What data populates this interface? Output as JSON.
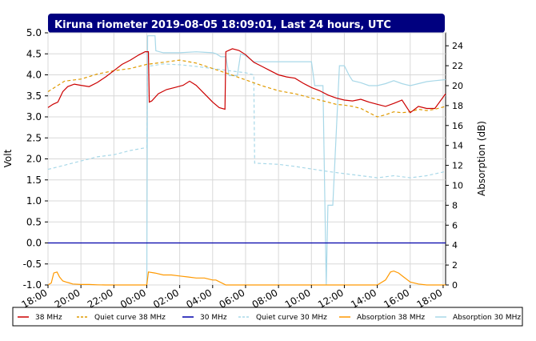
{
  "chart_data": {
    "type": "line",
    "title": "Kiruna riometer 2019-08-05 18:09:01, Last 24 hours, UTC",
    "ylabel": "Volt",
    "y2label": "Absorption (dB)",
    "xlabel": "",
    "x_ticks": [
      "18:00",
      "20:00",
      "22:00",
      "00:00",
      "02:00",
      "04:00",
      "06:00",
      "08:00",
      "10:00",
      "12:00",
      "14:00",
      "16:00",
      "18:00"
    ],
    "x_range_hours": [
      0,
      24.15
    ],
    "ylim": [
      -1.0,
      5.0
    ],
    "y_ticks": [
      "5.0",
      "4.5",
      "4.0",
      "3.5",
      "3.0",
      "2.5",
      "2.0",
      "1.5",
      "1.0",
      "0.5",
      "0.0",
      "-0.5",
      "-1.0"
    ],
    "y2lim": [
      0,
      25.3
    ],
    "y2_ticks": [
      "24",
      "22",
      "20",
      "18",
      "16",
      "14",
      "12",
      "10",
      "8",
      "6",
      "4",
      "2",
      "0"
    ],
    "grid": true,
    "legend_position": "bottom",
    "colors": {
      "title_bg": "#00007f",
      "s38": "#cc0000",
      "q38": "#e09a00",
      "s30": "#0000aa",
      "q30": "#a8d8e8",
      "a38": "#ff9900",
      "a30": "#a8d8e8"
    },
    "series": [
      {
        "name": "38 MHz",
        "key": "s38",
        "style": "solid",
        "axis": "volt",
        "x": [
          0,
          0.3,
          0.6,
          0.9,
          1.2,
          1.6,
          2,
          2.5,
          3,
          3.5,
          4,
          4.5,
          5,
          5.5,
          5.9,
          6.1,
          6.15,
          6.3,
          6.7,
          7.2,
          7.7,
          8.2,
          8.6,
          9,
          9.5,
          10,
          10.4,
          10.75,
          10.8,
          11.2,
          11.6,
          12,
          12.5,
          13,
          13.5,
          14,
          14.5,
          15,
          15.5,
          16,
          16.5,
          17,
          17.5,
          18,
          18.5,
          19,
          19.5,
          20,
          20.5,
          21,
          21.5,
          22,
          22.5,
          23,
          23.5,
          24.15
        ],
        "y": [
          3.22,
          3.3,
          3.35,
          3.6,
          3.72,
          3.78,
          3.75,
          3.72,
          3.82,
          3.95,
          4.1,
          4.25,
          4.35,
          4.47,
          4.55,
          4.55,
          3.35,
          3.38,
          3.55,
          3.65,
          3.7,
          3.75,
          3.85,
          3.75,
          3.55,
          3.35,
          3.22,
          3.18,
          4.55,
          4.62,
          4.58,
          4.48,
          4.3,
          4.2,
          4.1,
          4.0,
          3.95,
          3.92,
          3.8,
          3.7,
          3.62,
          3.52,
          3.45,
          3.4,
          3.38,
          3.42,
          3.35,
          3.3,
          3.25,
          3.32,
          3.4,
          3.1,
          3.25,
          3.2,
          3.2,
          3.55
        ]
      },
      {
        "name": "Quiet curve 38 MHz",
        "key": "q38",
        "style": "dashed",
        "axis": "volt",
        "x": [
          0,
          1,
          2,
          3,
          4,
          5,
          6,
          7,
          8,
          9,
          10,
          11,
          12,
          13,
          14,
          15,
          16,
          16.5,
          17,
          17.5,
          18,
          18.5,
          19,
          19.5,
          20,
          20.5,
          21,
          21.5,
          22,
          22.5,
          23,
          23.5,
          24.15
        ],
        "y": [
          3.6,
          3.85,
          3.9,
          4.02,
          4.1,
          4.15,
          4.25,
          4.3,
          4.35,
          4.28,
          4.15,
          4.02,
          3.88,
          3.74,
          3.62,
          3.55,
          3.45,
          3.4,
          3.35,
          3.3,
          3.28,
          3.25,
          3.2,
          3.1,
          3.0,
          3.05,
          3.12,
          3.1,
          3.12,
          3.18,
          3.15,
          3.18,
          3.25
        ]
      },
      {
        "name": "30 MHz",
        "key": "s30",
        "style": "solid",
        "axis": "volt",
        "x": [
          0,
          24.15
        ],
        "y": [
          0.0,
          0.0
        ]
      },
      {
        "name": "Quiet curve 30 MHz",
        "key": "q30",
        "style": "dashed",
        "axis": "volt",
        "x": [
          0,
          1,
          2,
          3,
          4,
          5,
          6,
          6.05,
          7,
          8,
          9,
          10,
          11,
          12,
          12.5,
          12.55,
          14,
          15,
          16,
          17,
          18,
          19,
          20,
          21,
          22,
          23,
          24.15
        ],
        "y": [
          1.75,
          1.85,
          1.95,
          2.05,
          2.1,
          2.2,
          2.27,
          4.2,
          4.26,
          4.24,
          4.2,
          4.15,
          4.1,
          4.05,
          4.0,
          1.9,
          1.87,
          1.82,
          1.76,
          1.7,
          1.65,
          1.6,
          1.55,
          1.6,
          1.55,
          1.6,
          1.7
        ]
      },
      {
        "name": "Absorption 38 MHz",
        "key": "a38",
        "style": "solid",
        "axis": "db",
        "x": [
          0,
          0.2,
          0.35,
          0.55,
          0.7,
          0.9,
          1.1,
          1.3,
          1.5,
          2,
          2.5,
          3,
          3.5,
          4,
          4.5,
          5,
          5.5,
          6,
          6.1,
          6.5,
          7,
          7.5,
          8,
          8.5,
          9,
          9.5,
          10,
          10.2,
          10.8,
          12,
          13,
          14,
          15,
          16,
          17,
          18,
          18.5,
          19,
          19.5,
          20,
          20.5,
          20.8,
          21,
          21.3,
          21.6,
          22,
          22.5,
          23,
          23.5,
          24.15
        ],
        "y": [
          0,
          0.2,
          1.2,
          1.3,
          0.8,
          0.4,
          0.3,
          0.2,
          0.1,
          0.05,
          0.05,
          0.02,
          0,
          0,
          0,
          0,
          0,
          0,
          1.3,
          1.2,
          1.0,
          1.0,
          0.9,
          0.8,
          0.7,
          0.7,
          0.5,
          0.5,
          0,
          0,
          0,
          0,
          0,
          0,
          0,
          0,
          0,
          0,
          0,
          0,
          0.5,
          1.3,
          1.4,
          1.2,
          0.8,
          0.3,
          0.1,
          0,
          0,
          0
        ]
      },
      {
        "name": "Absorption 30 MHz",
        "key": "a30",
        "style": "solid",
        "axis": "db",
        "x": [
          6,
          6.05,
          6.3,
          6.5,
          6.55,
          7,
          8,
          9,
          10,
          10.2,
          10.5,
          10.8,
          11,
          11.5,
          11.7,
          12,
          12.5,
          16,
          16.2,
          16.7,
          16.9,
          17,
          17.3,
          17.7,
          18,
          18.3,
          18.5,
          19,
          19.5,
          20,
          20.5,
          21,
          21.5,
          22,
          22.5,
          23,
          23.5,
          24.15
        ],
        "y": [
          0,
          25,
          25,
          25,
          23.5,
          23.3,
          23.3,
          23.4,
          23.3,
          23.2,
          22.9,
          22.9,
          21,
          21,
          23.2,
          23,
          22.4,
          22.4,
          20,
          20,
          0,
          8,
          8,
          22,
          22,
          21,
          20.5,
          20.3,
          20,
          20,
          20.2,
          20.5,
          20.2,
          20,
          20.2,
          20.4,
          20.5,
          20.6
        ]
      }
    ]
  }
}
